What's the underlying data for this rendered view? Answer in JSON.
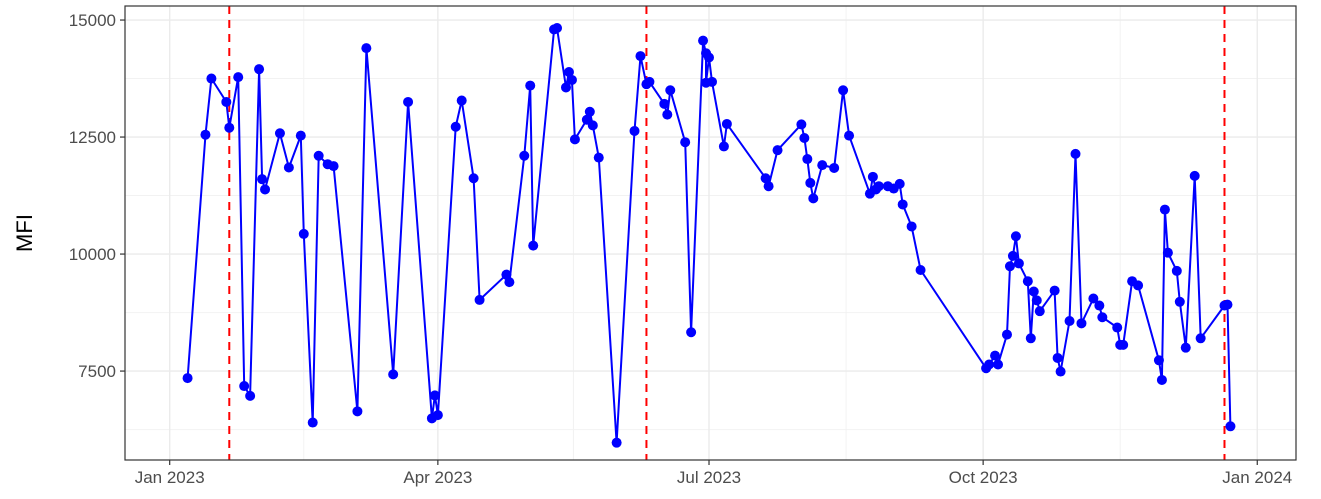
{
  "chart_data": {
    "type": "line",
    "title": "",
    "xlabel": "",
    "ylabel": "MFI",
    "x_axis_type": "date",
    "xlim": [
      "2022-12-17",
      "2024-01-14"
    ],
    "ylim": [
      5600,
      15300
    ],
    "x_ticks": [
      {
        "date": "2023-01-01",
        "label": "Jan 2023"
      },
      {
        "date": "2023-04-01",
        "label": "Apr 2023"
      },
      {
        "date": "2023-07-01",
        "label": "Jul 2023"
      },
      {
        "date": "2023-10-01",
        "label": "Oct 2023"
      },
      {
        "date": "2024-01-01",
        "label": "Jan 2024"
      }
    ],
    "y_ticks": [
      7500,
      10000,
      12500,
      15000
    ],
    "grid": true,
    "legend": "none",
    "line_color": "#0000ff",
    "marker_color": "#0000ff",
    "vline_color": "#ff0000",
    "vlines": [
      "2023-01-21",
      "2023-06-10",
      "2023-12-21"
    ],
    "series": [
      {
        "name": "",
        "points": [
          [
            "2023-01-07",
            7350
          ],
          [
            "2023-01-13",
            12550
          ],
          [
            "2023-01-15",
            13750
          ],
          [
            "2023-01-20",
            13250
          ],
          [
            "2023-01-21",
            12700
          ],
          [
            "2023-01-24",
            13780
          ],
          [
            "2023-01-26",
            7180
          ],
          [
            "2023-01-28",
            6970
          ],
          [
            "2023-01-31",
            13950
          ],
          [
            "2023-02-01",
            11600
          ],
          [
            "2023-02-02",
            11380
          ],
          [
            "2023-02-07",
            12580
          ],
          [
            "2023-02-10",
            11850
          ],
          [
            "2023-02-14",
            12530
          ],
          [
            "2023-02-15",
            10430
          ],
          [
            "2023-02-18",
            6400
          ],
          [
            "2023-02-20",
            12100
          ],
          [
            "2023-02-23",
            11920
          ],
          [
            "2023-02-25",
            11880
          ],
          [
            "2023-03-05",
            6640
          ],
          [
            "2023-03-08",
            14400
          ],
          [
            "2023-03-17",
            7430
          ],
          [
            "2023-03-22",
            13250
          ],
          [
            "2023-03-30",
            6490
          ],
          [
            "2023-03-31",
            6980
          ],
          [
            "2023-04-01",
            6560
          ],
          [
            "2023-04-07",
            12720
          ],
          [
            "2023-04-09",
            13280
          ],
          [
            "2023-04-13",
            11620
          ],
          [
            "2023-04-15",
            9020
          ],
          [
            "2023-04-24",
            9560
          ],
          [
            "2023-04-25",
            9400
          ],
          [
            "2023-04-30",
            12100
          ],
          [
            "2023-05-02",
            13600
          ],
          [
            "2023-05-03",
            10180
          ],
          [
            "2023-05-10",
            14800
          ],
          [
            "2023-05-11",
            14830
          ],
          [
            "2023-05-14",
            13560
          ],
          [
            "2023-05-15",
            13890
          ],
          [
            "2023-05-16",
            13720
          ],
          [
            "2023-05-17",
            12450
          ],
          [
            "2023-05-21",
            12870
          ],
          [
            "2023-05-22",
            13040
          ],
          [
            "2023-05-23",
            12750
          ],
          [
            "2023-05-25",
            12060
          ],
          [
            "2023-05-31",
            5970
          ],
          [
            "2023-06-06",
            12630
          ],
          [
            "2023-06-08",
            14230
          ],
          [
            "2023-06-10",
            13630
          ],
          [
            "2023-06-11",
            13680
          ],
          [
            "2023-06-16",
            13210
          ],
          [
            "2023-06-17",
            12980
          ],
          [
            "2023-06-18",
            13500
          ],
          [
            "2023-06-23",
            12390
          ],
          [
            "2023-06-25",
            8330
          ],
          [
            "2023-06-29",
            14560
          ],
          [
            "2023-06-30",
            14290
          ],
          [
            "2023-06-30",
            13660
          ],
          [
            "2023-07-01",
            14200
          ],
          [
            "2023-07-02",
            13680
          ],
          [
            "2023-07-06",
            12300
          ],
          [
            "2023-07-07",
            12780
          ],
          [
            "2023-07-20",
            11620
          ],
          [
            "2023-07-21",
            11450
          ],
          [
            "2023-07-24",
            12220
          ],
          [
            "2023-08-01",
            12770
          ],
          [
            "2023-08-02",
            12480
          ],
          [
            "2023-08-03",
            12030
          ],
          [
            "2023-08-04",
            11520
          ],
          [
            "2023-08-05",
            11190
          ],
          [
            "2023-08-08",
            11900
          ],
          [
            "2023-08-12",
            11840
          ],
          [
            "2023-08-15",
            13500
          ],
          [
            "2023-08-17",
            12530
          ],
          [
            "2023-08-24",
            11290
          ],
          [
            "2023-08-25",
            11650
          ],
          [
            "2023-08-26",
            11380
          ],
          [
            "2023-08-27",
            11450
          ],
          [
            "2023-08-30",
            11450
          ],
          [
            "2023-09-01",
            11400
          ],
          [
            "2023-09-03",
            11500
          ],
          [
            "2023-09-04",
            11060
          ],
          [
            "2023-09-07",
            10590
          ],
          [
            "2023-09-10",
            9660
          ],
          [
            "2023-10-02",
            7560
          ],
          [
            "2023-10-03",
            7640
          ],
          [
            "2023-10-05",
            7830
          ],
          [
            "2023-10-06",
            7640
          ],
          [
            "2023-10-09",
            8280
          ],
          [
            "2023-10-10",
            9740
          ],
          [
            "2023-10-11",
            9960
          ],
          [
            "2023-10-12",
            10380
          ],
          [
            "2023-10-13",
            9800
          ],
          [
            "2023-10-16",
            9420
          ],
          [
            "2023-10-17",
            8200
          ],
          [
            "2023-10-18",
            9200
          ],
          [
            "2023-10-19",
            9010
          ],
          [
            "2023-10-20",
            8780
          ],
          [
            "2023-10-25",
            9220
          ],
          [
            "2023-10-26",
            7780
          ],
          [
            "2023-10-27",
            7490
          ],
          [
            "2023-10-30",
            8570
          ],
          [
            "2023-11-01",
            12140
          ],
          [
            "2023-11-03",
            8520
          ],
          [
            "2023-11-07",
            9050
          ],
          [
            "2023-11-09",
            8900
          ],
          [
            "2023-11-10",
            8650
          ],
          [
            "2023-11-15",
            8430
          ],
          [
            "2023-11-16",
            8060
          ],
          [
            "2023-11-17",
            8060
          ],
          [
            "2023-11-20",
            9420
          ],
          [
            "2023-11-22",
            9330
          ],
          [
            "2023-11-29",
            7730
          ],
          [
            "2023-11-30",
            7310
          ],
          [
            "2023-12-01",
            10950
          ],
          [
            "2023-12-02",
            10030
          ],
          [
            "2023-12-05",
            9640
          ],
          [
            "2023-12-06",
            8980
          ],
          [
            "2023-12-08",
            8000
          ],
          [
            "2023-12-11",
            11670
          ],
          [
            "2023-12-13",
            8200
          ],
          [
            "2023-12-21",
            8900
          ],
          [
            "2023-12-22",
            8920
          ],
          [
            "2023-12-23",
            6320
          ]
        ]
      }
    ]
  }
}
